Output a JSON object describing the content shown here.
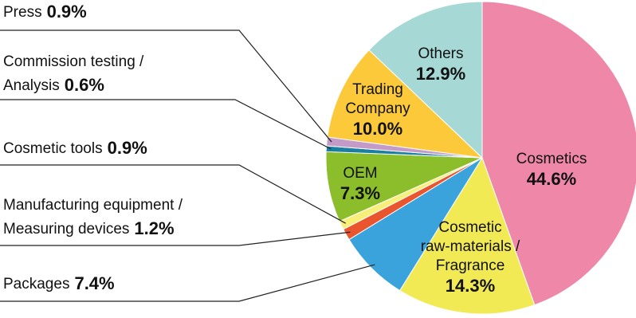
{
  "chart_data": {
    "type": "pie",
    "categories": [
      "Cosmetics",
      "Cosmetic\nraw-materials /\nFragrance",
      "Packages",
      "Manufacturing equipment /\nMeasuring devices",
      "Cosmetic tools",
      "OEM",
      "Commission testing /\nAnalysis",
      "Press",
      "Trading\nCompany",
      "Others"
    ],
    "values": [
      44.6,
      14.3,
      7.4,
      1.2,
      0.9,
      7.3,
      0.6,
      0.9,
      10.0,
      12.9
    ],
    "value_labels": [
      "44.6%",
      "14.3%",
      "7.4%",
      "1.2%",
      "0.9%",
      "7.3%",
      "0.6%",
      "0.9%",
      "10.0%",
      "12.9%"
    ],
    "colors": [
      "#ee87a8",
      "#f2ea55",
      "#3aa3dc",
      "#e8552e",
      "#f8ee7a",
      "#8cbd2a",
      "#1a7fa0",
      "#c49ac8",
      "#fcc93a",
      "#a6d9d5"
    ]
  }
}
